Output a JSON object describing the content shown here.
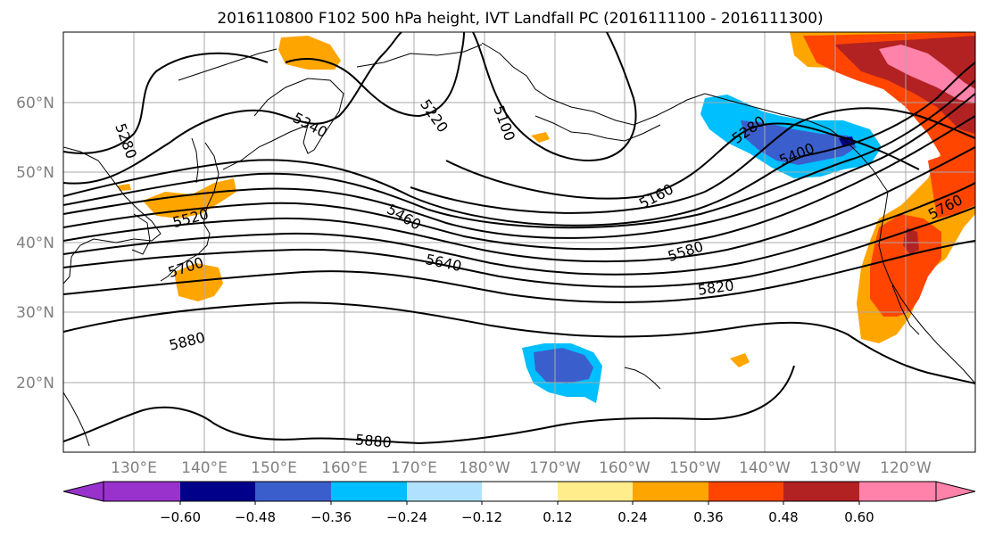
{
  "title": "2016110800 F102 500 hPa height, IVT Landfall PC (2016111100 - 2016111300)",
  "axes": {
    "lat_labels": [
      "20°N",
      "30°N",
      "40°N",
      "50°N",
      "60°N"
    ],
    "lat_values": [
      20,
      30,
      40,
      50,
      60
    ],
    "lon_labels": [
      "130°E",
      "140°E",
      "150°E",
      "160°E",
      "170°E",
      "180°W",
      "170°W",
      "160°W",
      "150°W",
      "140°W",
      "130°W",
      "120°W"
    ],
    "lon_values": [
      130,
      140,
      150,
      160,
      170,
      180,
      190,
      200,
      210,
      220,
      230,
      240
    ],
    "lon_range": [
      120,
      250
    ],
    "lat_range": [
      10,
      70
    ],
    "grid": true
  },
  "contour_labels": [
    "5280",
    "5340",
    "5220",
    "5100",
    "5280",
    "5400",
    "5160",
    "5520",
    "5460",
    "5580",
    "5760",
    "5700",
    "5640",
    "5820",
    "5880",
    "5880"
  ],
  "colorbar": {
    "colors": [
      "#9932cc",
      "#00008b",
      "#3a5fcd",
      "#00bfff",
      "#b0e2ff",
      "#ffffff",
      "#ffec8b",
      "#ffa500",
      "#ff4500",
      "#b22222",
      "#ff82ab"
    ],
    "tick_labels": [
      "−0.60",
      "−0.48",
      "−0.36",
      "−0.24",
      "−0.12",
      "0.12",
      "0.24",
      "0.36",
      "0.48",
      "0.60"
    ],
    "tick_values": [
      -0.6,
      -0.48,
      -0.36,
      -0.24,
      -0.12,
      0.12,
      0.24,
      0.36,
      0.48,
      0.6
    ],
    "extend": "both"
  }
}
